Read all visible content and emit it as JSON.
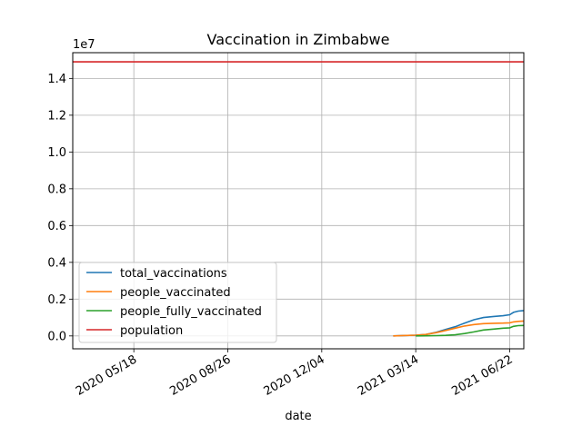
{
  "chart_data": {
    "type": "line",
    "title": "Vaccination in Zimbabwe",
    "xlabel": "date",
    "ylabel": "",
    "y_offset_label": "1e7",
    "grid": true,
    "legend_position": "lower-left",
    "xlim": [
      "2020-03-14",
      "2021-07-07"
    ],
    "ylim": [
      -700000,
      15400000
    ],
    "x_ticks": [
      "2020-05-18",
      "2020-08-26",
      "2020-12-04",
      "2021-03-14",
      "2021-06-22"
    ],
    "x_tick_labels": [
      "2020 05/18",
      "2020 08/26",
      "2020 12/04",
      "2021 03/14",
      "2021 06/22"
    ],
    "y_ticks": [
      0,
      2000000,
      4000000,
      6000000,
      8000000,
      10000000,
      12000000,
      14000000
    ],
    "y_tick_labels": [
      "0.0",
      "0.2",
      "0.4",
      "0.6",
      "0.8",
      "1.0",
      "1.2",
      "1.4"
    ],
    "series": [
      {
        "name": "total_vaccinations",
        "color": "#1f77b4",
        "x": [
          "2021-02-18",
          "2021-03-01",
          "2021-03-14",
          "2021-03-25",
          "2021-04-05",
          "2021-04-15",
          "2021-04-25",
          "2021-05-05",
          "2021-05-15",
          "2021-05-25",
          "2021-06-05",
          "2021-06-15",
          "2021-06-22",
          "2021-06-26",
          "2021-07-01",
          "2021-07-07"
        ],
        "y": [
          0,
          20000,
          40000,
          80000,
          200000,
          350000,
          500000,
          700000,
          880000,
          1000000,
          1060000,
          1100000,
          1150000,
          1280000,
          1350000,
          1380000
        ]
      },
      {
        "name": "people_vaccinated",
        "color": "#ff7f0e",
        "x": [
          "2021-02-18",
          "2021-03-01",
          "2021-03-14",
          "2021-03-25",
          "2021-04-05",
          "2021-04-15",
          "2021-04-25",
          "2021-05-05",
          "2021-05-15",
          "2021-05-25",
          "2021-06-05",
          "2021-06-15",
          "2021-06-22",
          "2021-06-26",
          "2021-07-01",
          "2021-07-07"
        ],
        "y": [
          0,
          20000,
          40000,
          80000,
          180000,
          300000,
          420000,
          540000,
          620000,
          670000,
          690000,
          700000,
          710000,
          760000,
          790000,
          810000
        ]
      },
      {
        "name": "people_fully_vaccinated",
        "color": "#2ca02c",
        "x": [
          "2021-03-14",
          "2021-03-25",
          "2021-04-05",
          "2021-04-15",
          "2021-04-25",
          "2021-05-05",
          "2021-05-15",
          "2021-05-25",
          "2021-06-05",
          "2021-06-15",
          "2021-06-22",
          "2021-06-26",
          "2021-07-01",
          "2021-07-07"
        ],
        "y": [
          0,
          5000,
          15000,
          30000,
          60000,
          130000,
          220000,
          320000,
          370000,
          420000,
          440000,
          520000,
          560000,
          570000
        ]
      },
      {
        "name": "population",
        "color": "#d62728",
        "x": [
          "2020-03-14",
          "2021-07-07"
        ],
        "y": [
          14900000,
          14900000
        ]
      }
    ]
  }
}
